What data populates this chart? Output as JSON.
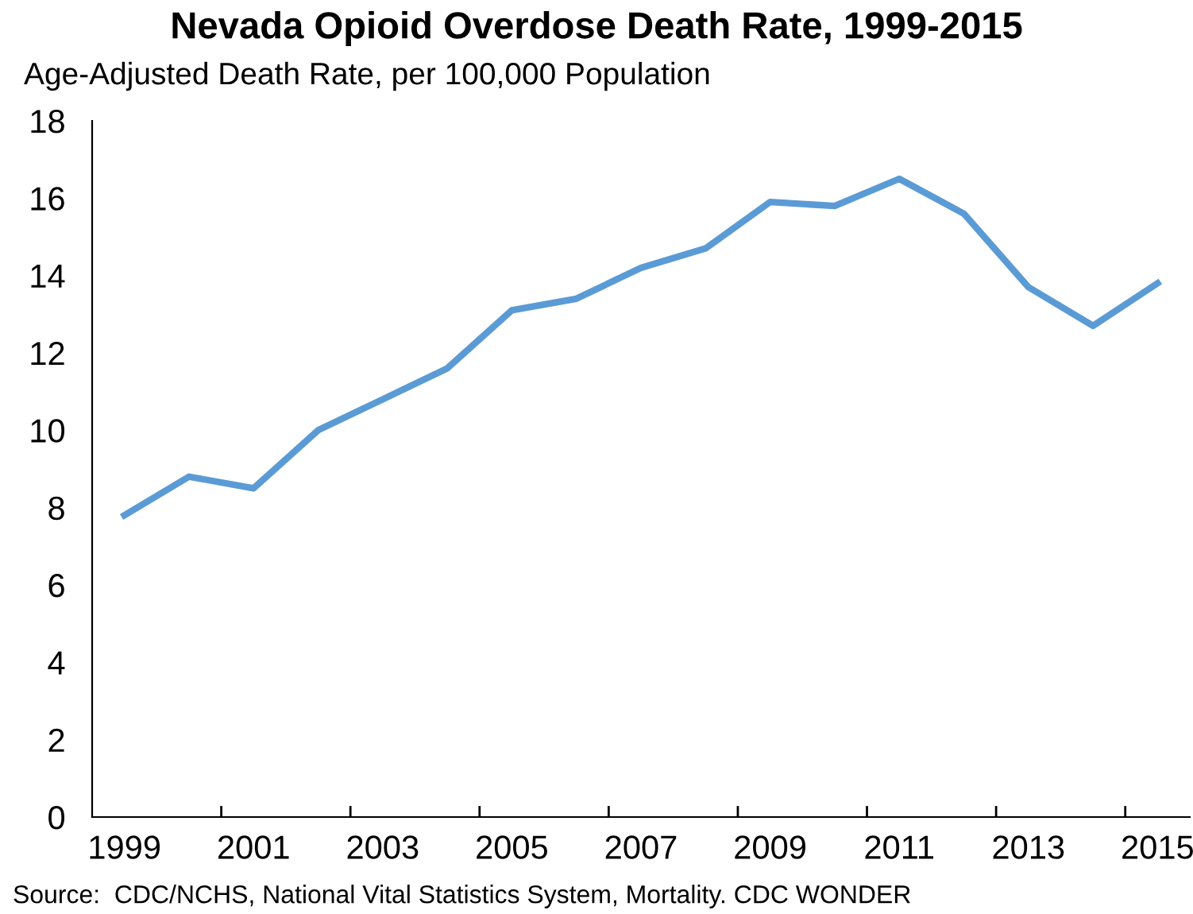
{
  "chart_data": {
    "type": "line",
    "title": "Nevada Opioid Overdose Death Rate, 1999-2015",
    "ylabel": "Age-Adjusted Death Rate, per 100,000 Population",
    "x": [
      1999,
      2000,
      2001,
      2002,
      2003,
      2004,
      2005,
      2006,
      2007,
      2008,
      2009,
      2010,
      2011,
      2012,
      2013,
      2014,
      2015
    ],
    "series": [
      {
        "color": "#5b9bd5",
        "values": [
          7.8,
          8.8,
          8.5,
          10.0,
          10.8,
          11.6,
          13.1,
          13.4,
          14.2,
          14.7,
          15.9,
          15.8,
          16.5,
          15.6,
          13.7,
          12.7,
          13.8
        ]
      }
    ],
    "xlim": [
      1998.5,
      2015.5
    ],
    "xticks": [
      1999,
      {
        "value": 2000.5,
        "label": null
      },
      2001,
      {
        "value": 2002.5,
        "label": null
      },
      2003,
      {
        "value": 2004.5,
        "label": null
      },
      2005,
      {
        "value": 2006.5,
        "label": null
      },
      2007,
      {
        "value": 2008.5,
        "label": null
      },
      2009,
      {
        "value": 2010.5,
        "label": null
      },
      2011,
      {
        "value": 2012.5,
        "label": null
      },
      2013,
      {
        "value": 2014.5,
        "label": null
      },
      2015
    ],
    "ylim": [
      0,
      18
    ],
    "yticks": [
      0,
      2,
      4,
      6,
      8,
      10,
      12,
      14,
      16,
      18
    ],
    "grid": false,
    "legend": false,
    "marker": "none",
    "line_style": "solid",
    "annotations": [
      "Source:  CDC/NCHS, National Vital Statistics System, Mortality. CDC WONDER"
    ]
  }
}
